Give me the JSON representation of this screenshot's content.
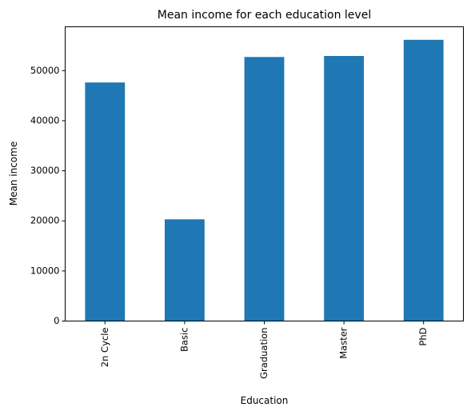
{
  "chart_data": {
    "type": "bar",
    "title": "Mean income for each education level",
    "xlabel": "Education",
    "ylabel": "Mean income",
    "categories": [
      "2n Cycle",
      "Basic",
      "Graduation",
      "Master",
      "PhD"
    ],
    "values": [
      47630,
      20310,
      52720,
      52920,
      56150
    ],
    "ylim": [
      0,
      58750
    ],
    "yticks": [
      0,
      10000,
      20000,
      30000,
      40000,
      50000
    ],
    "ytick_labels": [
      "0",
      "10000",
      "20000",
      "30000",
      "40000",
      "50000"
    ],
    "bar_color": "#1f77b4",
    "grid": false,
    "legend": "none"
  }
}
